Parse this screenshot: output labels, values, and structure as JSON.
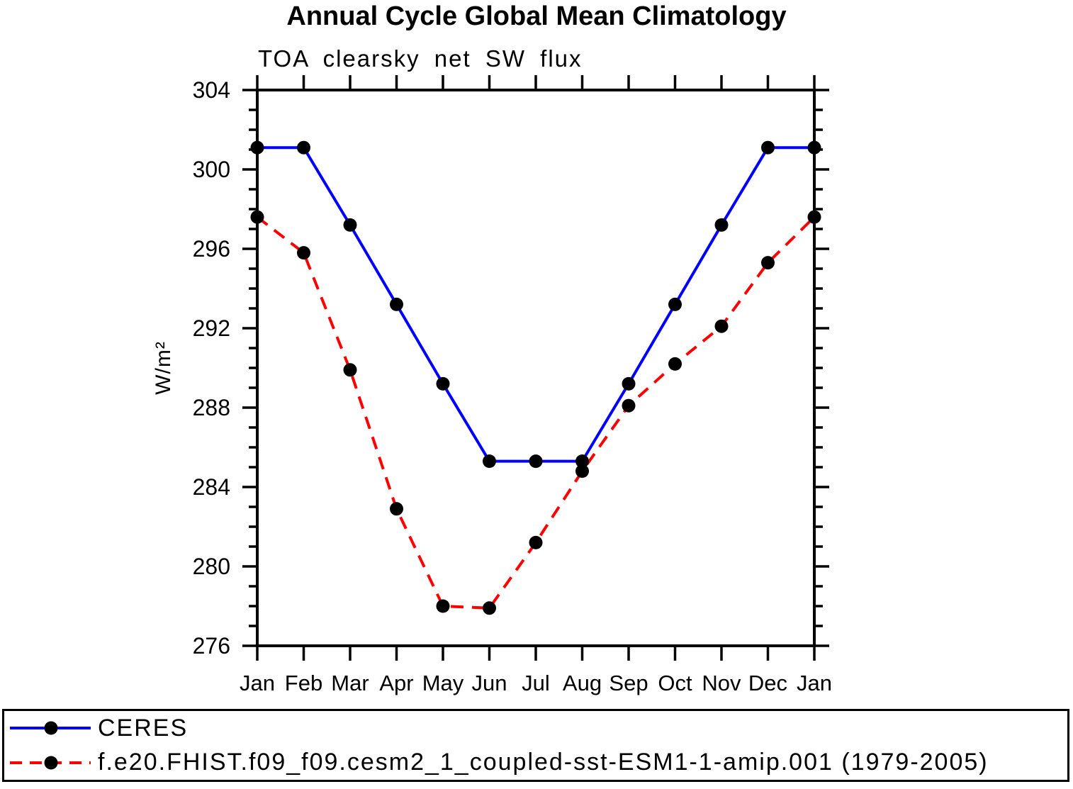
{
  "chart_data": {
    "type": "line",
    "title": "Annual Cycle Global Mean Climatology",
    "subtitle": "TOA clearsky net SW flux",
    "ylabel": "W/m²",
    "xlabel": "",
    "categories": [
      "Jan",
      "Feb",
      "Mar",
      "Apr",
      "May",
      "Jun",
      "Jul",
      "Aug",
      "Sep",
      "Oct",
      "Nov",
      "Dec",
      "Jan"
    ],
    "ylim": [
      276,
      304
    ],
    "ytick_major_interval": 4,
    "ytick_minor_interval": 1,
    "ytick_labels": [
      "276",
      "280",
      "284",
      "288",
      "292",
      "296",
      "300",
      "304"
    ],
    "grid": false,
    "legend_position": "bottom-box",
    "axis_color": "#000000",
    "marker_color": "#000000",
    "series": [
      {
        "name": "CERES",
        "color": "#0000ff",
        "style": "solid",
        "marker": "filled-circle",
        "values": [
          301.1,
          301.1,
          297.2,
          293.2,
          289.2,
          285.3,
          285.3,
          285.3,
          289.2,
          293.2,
          297.2,
          301.1,
          301.1
        ]
      },
      {
        "name": "f.e20.FHIST.f09_f09.cesm2_1_coupled-sst-ESM1-1-amip.001 (1979-2005)",
        "color": "#ff0000",
        "style": "dashed",
        "marker": "filled-circle",
        "values": [
          297.6,
          295.8,
          289.9,
          282.9,
          278.0,
          277.9,
          281.2,
          284.8,
          288.1,
          290.2,
          292.1,
          295.3,
          297.6
        ]
      }
    ]
  }
}
